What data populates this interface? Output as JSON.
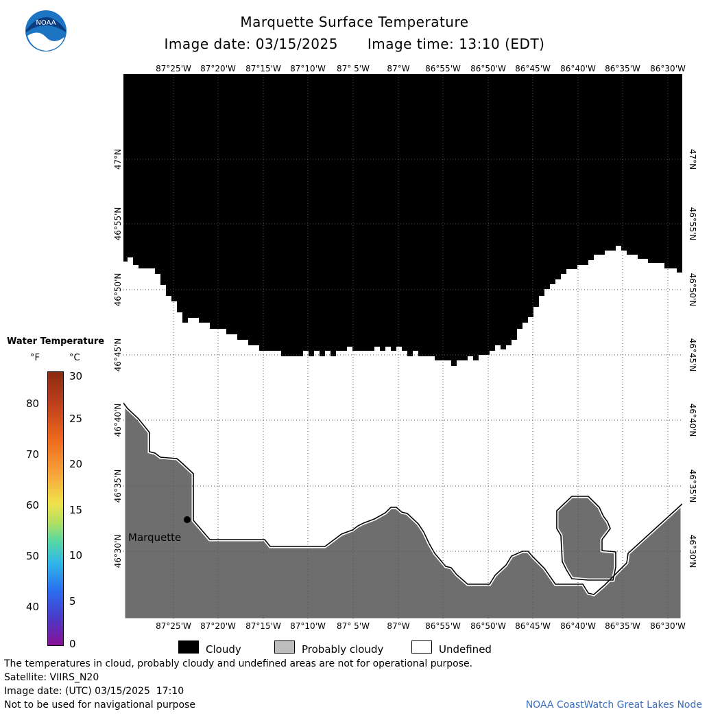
{
  "header": {
    "title": "Marquette Surface Temperature",
    "image_date": "Image date: 03/15/2025",
    "image_time": "Image time: 13:10 (EDT)",
    "logo_text": "NOAA"
  },
  "map": {
    "longitude_labels": [
      "87°25'W",
      "87°20'W",
      "87°15'W",
      "87°10'W",
      "87° 5'W",
      "87°W",
      "86°55'W",
      "86°50'W",
      "86°45'W",
      "86°40'W",
      "86°35'W",
      "86°30'W"
    ],
    "latitude_labels": [
      "47°N",
      "46°55'N",
      "46°50'N",
      "46°45'N",
      "46°40'N",
      "46°35'N",
      "46°30'N"
    ],
    "place_label": "Marquette",
    "colors": {
      "cloudy": "#000000",
      "probably_cloudy": "#6e6e6e",
      "undefined": "#ffffff"
    }
  },
  "colorbar": {
    "title": "Water Temperature",
    "unit_f": "°F",
    "unit_c": "°C",
    "fahrenheit_ticks": [
      "80",
      "70",
      "60",
      "50",
      "40"
    ],
    "celsius_ticks": [
      "30",
      "25",
      "20",
      "15",
      "10",
      "5",
      "0"
    ]
  },
  "legend": {
    "cloudy": "Cloudy",
    "probably_cloudy": "Probably cloudy",
    "undefined": "Undefined"
  },
  "footer": {
    "disclaimer": "The temperatures in cloud, probably cloudy and undefined areas are not for operational purpose.",
    "satellite": "Satellite: VIIRS_N20",
    "utc_date": "Image date: (UTC) 03/15/2025  17:10",
    "navigation": "Not to be used for navigational purpose",
    "credit": "NOAA CoastWatch Great Lakes Node"
  }
}
